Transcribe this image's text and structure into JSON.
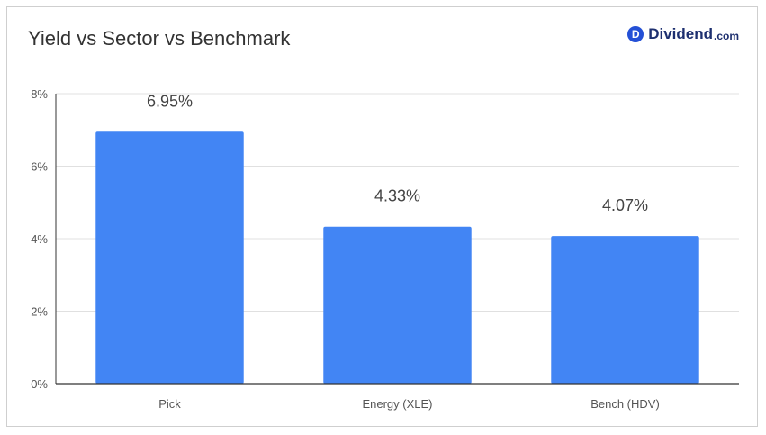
{
  "header": {
    "title": "Yield vs Sector vs Benchmark",
    "brand_badge": "D",
    "brand_name": "Dividend",
    "brand_suffix": ".com"
  },
  "colors": {
    "bar": "#4285f4",
    "grid": "#e0e0e0",
    "axis": "#333333",
    "tick_text": "#555555",
    "label_text": "#444444",
    "brand": "#2450d6"
  },
  "chart_data": {
    "type": "bar",
    "title": "Yield vs Sector vs Benchmark",
    "categories": [
      "Pick",
      "Energy (XLE)",
      "Bench (HDV)"
    ],
    "values": [
      6.95,
      4.33,
      4.07
    ],
    "data_labels": [
      "6.95%",
      "4.33%",
      "4.07%"
    ],
    "ylim": [
      0,
      8
    ],
    "yticks": [
      0,
      2,
      4,
      6,
      8
    ],
    "ytick_labels": [
      "0%",
      "2%",
      "4%",
      "6%",
      "8%"
    ],
    "xlabel": "",
    "ylabel": "",
    "grid": true,
    "legend": "none"
  }
}
